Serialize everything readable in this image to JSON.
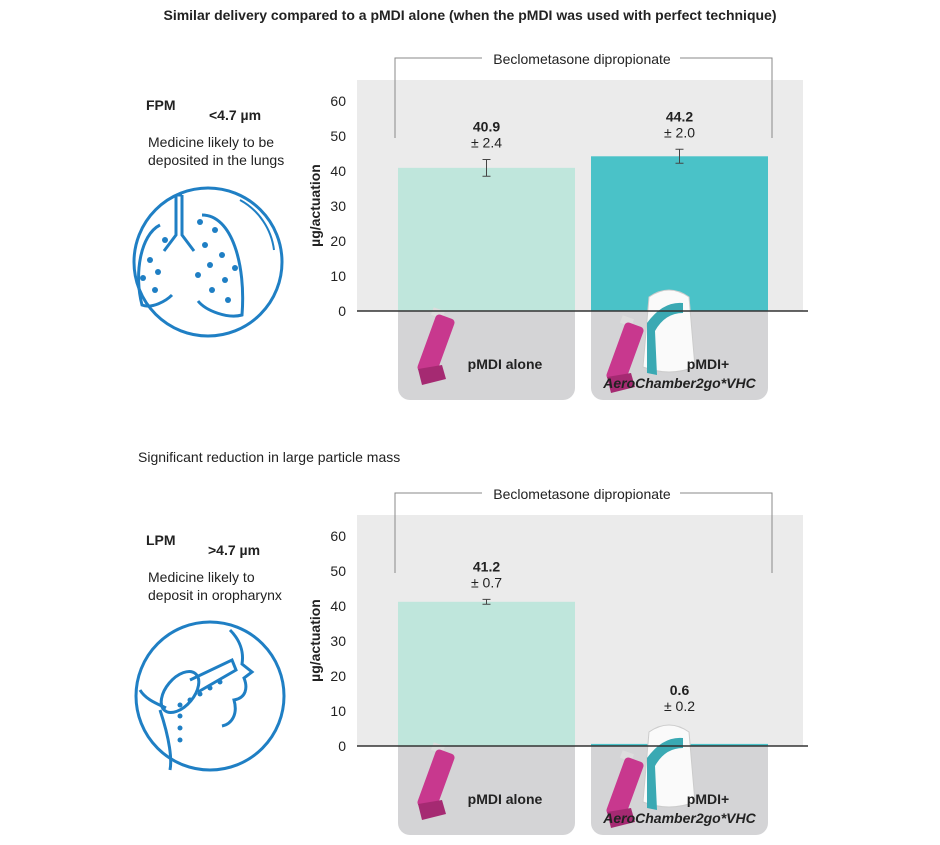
{
  "chart_data": [
    {
      "type": "bar",
      "title": "Similar delivery compared to a pMDI alone (when the pMDI was used with perfect technique)",
      "heading": "FPM",
      "heading_sub": "<4.7 µm",
      "description": [
        "Medicine likely to be",
        "deposited in the lungs"
      ],
      "group_label": "Beclometasone dipropionate",
      "y_label": "µg/actuation",
      "categories": [
        "pMDI alone",
        "pMDI+"
      ],
      "category_notes": [
        null,
        "AeroChamber2go*VHC"
      ],
      "values": [
        40.9,
        44.2
      ],
      "errors": [
        2.4,
        2.0
      ],
      "error_labels": [
        "± 2.4",
        "± 2.0"
      ],
      "colors": [
        "#bfe6dc",
        "#4ac2c8"
      ],
      "ylim": [
        0,
        66
      ],
      "yticks": [
        0,
        10,
        20,
        30,
        40,
        50,
        60
      ]
    },
    {
      "type": "bar",
      "title": "Significant reduction in large particle mass",
      "heading": "LPM",
      "heading_sub": ">4.7 µm",
      "description": [
        "Medicine likely to",
        "deposit in oropharynx"
      ],
      "group_label": "Beclometasone dipropionate",
      "y_label": "µg/actuation",
      "categories": [
        "pMDI alone",
        "pMDI+"
      ],
      "category_notes": [
        null,
        "AeroChamber2go*VHC"
      ],
      "values": [
        41.2,
        0.6
      ],
      "errors": [
        0.7,
        0.2
      ],
      "error_labels": [
        "± 0.7",
        "± 0.2"
      ],
      "colors": [
        "#bfe6dc",
        "#4ac2c8"
      ],
      "ylim": [
        0,
        66
      ],
      "yticks": [
        0,
        10,
        20,
        30,
        40,
        50,
        60
      ]
    }
  ]
}
